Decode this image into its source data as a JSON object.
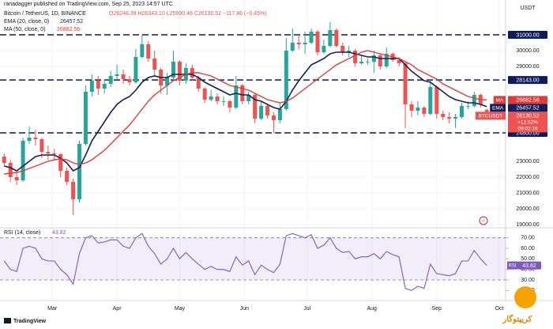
{
  "header": {
    "publisher": "ranadagger published on TradingView.com, Sep 25, 2023 14:57 UTC",
    "symbol": "Bitcoin / TetherUS, 1D, BINANCE",
    "quote": "O26248.39 H26343.10 L25990.46 C26130.52 −117.86 (−0.45%)",
    "brand": "TradingView",
    "watermark": "کریپتوگار"
  },
  "chart_data": {
    "type": "candlestick",
    "currency": "USDT",
    "open": [
      23300,
      22900,
      22000,
      21800,
      24300,
      24500,
      24400,
      23600,
      23500,
      23450,
      22400,
      21700,
      20600,
      24100,
      27400,
      28100,
      27600,
      27900,
      28400,
      28500,
      28200,
      28000,
      29600,
      30400,
      29500,
      28800,
      27800,
      28300,
      29300,
      28100,
      28900,
      28300,
      27600,
      26900,
      27100,
      26800,
      26800,
      26400,
      27800,
      26800,
      27200,
      25700,
      26500,
      25900,
      25600,
      26300,
      30000,
      30500,
      30400,
      30500,
      31200,
      29900,
      30300,
      31300,
      30300,
      29900,
      30000,
      29200,
      29300,
      29300,
      29700,
      29000,
      29800,
      29400,
      29200,
      26600,
      26200,
      26400,
      26000,
      27700,
      26000,
      25800,
      25700,
      25800,
      26500,
      26500,
      27200,
      26248.39
    ],
    "high": [
      23500,
      23100,
      22300,
      24500,
      25200,
      25000,
      24500,
      24000,
      23800,
      23500,
      22600,
      21900,
      24300,
      27800,
      28500,
      28400,
      28200,
      28700,
      29100,
      28800,
      28400,
      30100,
      31000,
      30600,
      30000,
      28900,
      28600,
      30000,
      29400,
      29200,
      29100,
      28400,
      27700,
      27500,
      27300,
      27100,
      26900,
      28400,
      27900,
      27400,
      27300,
      26800,
      26600,
      26100,
      26700,
      30800,
      31400,
      31000,
      31200,
      31400,
      31300,
      30700,
      31800,
      31400,
      30500,
      30300,
      30100,
      29700,
      29500,
      30000,
      29800,
      30200,
      29900,
      29600,
      29300,
      26800,
      26800,
      26500,
      28100,
      27800,
      26200,
      26100,
      26000,
      26700,
      26800,
      27400,
      27300,
      26343.1
    ],
    "low": [
      22700,
      21700,
      21500,
      21700,
      24100,
      24000,
      23200,
      23100,
      23100,
      22000,
      21500,
      19600,
      20400,
      24000,
      27100,
      27200,
      27300,
      27700,
      28200,
      27900,
      27800,
      27900,
      29500,
      29300,
      28400,
      27300,
      27200,
      28100,
      27800,
      27900,
      28100,
      27400,
      26700,
      26800,
      26600,
      26500,
      26100,
      26300,
      26600,
      26600,
      25400,
      25600,
      25700,
      24800,
      25400,
      26200,
      29900,
      30100,
      29800,
      30400,
      29700,
      29800,
      30200,
      30200,
      29700,
      29600,
      29000,
      29100,
      29100,
      28600,
      28800,
      28900,
      29300,
      29000,
      25100,
      25800,
      25900,
      25800,
      25900,
      25700,
      25600,
      25400,
      25100,
      25700,
      26300,
      26400,
      26400,
      25990.46
    ],
    "close": [
      22900,
      22000,
      21800,
      24300,
      24500,
      24400,
      23600,
      23500,
      23450,
      22400,
      21700,
      20600,
      24100,
      27400,
      28100,
      27600,
      27900,
      28400,
      28500,
      28200,
      28000,
      29600,
      30400,
      29500,
      28800,
      27800,
      28300,
      29300,
      28100,
      28900,
      28300,
      27600,
      26900,
      27100,
      26800,
      26800,
      26400,
      27800,
      26800,
      27200,
      25700,
      26500,
      25900,
      25600,
      26300,
      30000,
      30500,
      30400,
      30500,
      31200,
      29900,
      30300,
      31300,
      30300,
      29900,
      30000,
      29200,
      29300,
      29300,
      29700,
      29000,
      29800,
      29400,
      29200,
      26600,
      26200,
      26400,
      26000,
      27700,
      26000,
      25800,
      25700,
      25800,
      26500,
      26500,
      27200,
      26600,
      26130.52
    ],
    "up_color": "#26a69a",
    "down_color": "#ef5350",
    "ylim": [
      18850,
      32600
    ],
    "yticks": [
      {
        "value": 30000,
        "label": "30000.00"
      },
      {
        "value": 29000,
        "label": "29000.00"
      },
      {
        "value": 23000,
        "label": "23000.00"
      },
      {
        "value": 22000,
        "label": "22000.00"
      },
      {
        "value": 21000,
        "label": "21000.00"
      },
      {
        "value": 20000,
        "label": "20000.00"
      },
      {
        "value": 19000,
        "label": "19000.00"
      }
    ],
    "grid": true,
    "xlim": [
      -2,
      240
    ],
    "xticks": [
      {
        "value": 23,
        "label": "Mar"
      },
      {
        "value": 54,
        "label": "Apr"
      },
      {
        "value": 84,
        "label": "May"
      },
      {
        "value": 115,
        "label": "Jun"
      },
      {
        "value": 145,
        "label": "Jul"
      },
      {
        "value": 176,
        "label": "Aug"
      },
      {
        "value": 207,
        "label": "Sep"
      },
      {
        "value": 237,
        "label": "Oct"
      }
    ],
    "levels": [
      {
        "value": 31000,
        "label": "31000.00"
      },
      {
        "value": 28143,
        "label": "28143.00"
      },
      {
        "value": 24800,
        "label": "24800.00"
      }
    ],
    "level_color": "#0c1b5e",
    "indicators": [
      {
        "name": "EMA (20, close, 0)",
        "short": "EMA",
        "color": "#131e5c",
        "values": [
          22700,
          22600,
          22400,
          22700,
          23000,
          23300,
          23400,
          23400,
          23400,
          23200,
          22900,
          22400,
          22600,
          23400,
          24300,
          24900,
          25500,
          26100,
          26600,
          26900,
          27100,
          27500,
          28000,
          28300,
          28400,
          28300,
          28300,
          28500,
          28500,
          28500,
          28500,
          28300,
          28000,
          27800,
          27600,
          27400,
          27200,
          27300,
          27200,
          27200,
          26900,
          26800,
          26600,
          26400,
          26300,
          26800,
          27500,
          28100,
          28600,
          29100,
          29300,
          29500,
          29800,
          29900,
          29900,
          29900,
          29800,
          29700,
          29600,
          29600,
          29500,
          29500,
          29500,
          29500,
          29100,
          28700,
          28400,
          28100,
          28000,
          27700,
          27400,
          27100,
          26900,
          26800,
          26700,
          26700,
          26600,
          26457.52
        ]
      },
      {
        "name": "MA (50, close, 0)",
        "short": "MA",
        "color": "#e53935",
        "values": [
          22200,
          22250,
          22300,
          22400,
          22550,
          22700,
          22850,
          23000,
          23100,
          23150,
          23100,
          22900,
          22800,
          22900,
          23100,
          23400,
          23700,
          24100,
          24500,
          24900,
          25300,
          25800,
          26300,
          26800,
          27200,
          27500,
          27800,
          28100,
          28300,
          28500,
          28600,
          28600,
          28500,
          28400,
          28200,
          28000,
          27800,
          27700,
          27600,
          27500,
          27300,
          27100,
          26900,
          26800,
          26700,
          26800,
          27000,
          27300,
          27600,
          27900,
          28200,
          28500,
          28800,
          29100,
          29300,
          29500,
          29700,
          29900,
          30000,
          29900,
          29800,
          29700,
          29600,
          29500,
          29300,
          29100,
          28800,
          28600,
          28400,
          28200,
          27900,
          27700,
          27500,
          27300,
          27100,
          27000,
          26900,
          26882.56
        ]
      }
    ],
    "last_tag": {
      "name": "BTCUSDT",
      "lines": [
        "+12.02%",
        "09:02:18"
      ]
    },
    "rsi": {
      "name": "RSI (14, close)",
      "short": "RSI",
      "color": "#7e57c2",
      "values": [
        48,
        40,
        38,
        60,
        62,
        60,
        50,
        48,
        48,
        40,
        35,
        26,
        55,
        70,
        72,
        65,
        66,
        68,
        68,
        62,
        60,
        70,
        74,
        62,
        55,
        45,
        50,
        60,
        50,
        56,
        50,
        45,
        40,
        43,
        40,
        40,
        38,
        52,
        44,
        48,
        35,
        44,
        40,
        37,
        45,
        72,
        74,
        72,
        70,
        73,
        60,
        63,
        70,
        60,
        56,
        57,
        50,
        52,
        52,
        55,
        50,
        57,
        54,
        52,
        22,
        20,
        24,
        22,
        45,
        36,
        35,
        34,
        36,
        48,
        48,
        58,
        50,
        43.82
      ],
      "ylim": [
        12,
        78
      ],
      "yticks": [
        {
          "value": 70,
          "label": "70.00"
        },
        {
          "value": 60,
          "label": "60.00"
        },
        {
          "value": 50,
          "label": "50.00"
        },
        {
          "value": 40,
          "label": "40.00"
        },
        {
          "value": 30,
          "label": "30.00"
        },
        {
          "value": 20,
          "label": "20.00"
        }
      ],
      "bands": [
        30,
        70
      ]
    }
  }
}
